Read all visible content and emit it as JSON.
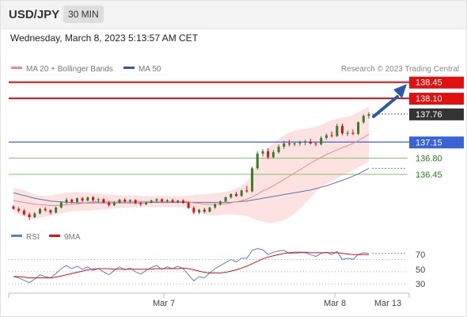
{
  "header": {
    "pair": "USD/JPY",
    "timeframe": "30 MIN"
  },
  "datetime": "Wednesday, March 8, 2023 5:13:57 AM CET",
  "legend": [
    {
      "label": "MA 20 + Bollinger Bands",
      "color": "#f08a8a"
    },
    {
      "label": "MA 50",
      "color": "#3a5a8f"
    }
  ],
  "source": "Research © 2023 Trading Central",
  "colors": {
    "resistance": "#e01010",
    "pivot": "#3a63d6",
    "support": "#7cc36c",
    "bull": "#3c7a2a",
    "bear": "#d51515",
    "ma20": "#f08a8a",
    "ma50": "#5b74b0",
    "band": "#fde2e2",
    "current": "#333333",
    "arrow": "#2c5aa8",
    "rsi": "#5b7ed8",
    "rsi_ma": "#e01010"
  },
  "levels": [
    {
      "value": 138.45,
      "label": "138.45",
      "kind": "resistance",
      "style": "box"
    },
    {
      "value": 138.1,
      "label": "138.10",
      "kind": "resistance",
      "style": "box"
    },
    {
      "value": 137.76,
      "label": "137.76",
      "kind": "current",
      "style": "box"
    },
    {
      "value": 137.15,
      "label": "137.15",
      "kind": "pivot",
      "style": "box"
    },
    {
      "value": 136.8,
      "label": "136.80",
      "kind": "support",
      "style": "text"
    },
    {
      "value": 136.45,
      "label": "136.45",
      "kind": "support",
      "style": "text"
    }
  ],
  "rsi_panel": {
    "legend": [
      {
        "label": "RSI",
        "color": "#5b7ed8"
      },
      {
        "label": "9MA",
        "color": "#e01010"
      }
    ],
    "levels": [
      "70",
      "50",
      "30"
    ]
  },
  "x_axis": {
    "labels": [
      "Mar 7",
      "Mar 8",
      "Mar 13"
    ]
  },
  "chart_data": {
    "type": "candlestick",
    "price_range": [
      135.4,
      138.6
    ],
    "candles_ohlc": [
      [
        135.75,
        135.78,
        135.68,
        135.7
      ],
      [
        135.7,
        135.74,
        135.62,
        135.66
      ],
      [
        135.66,
        135.7,
        135.55,
        135.58
      ],
      [
        135.58,
        135.62,
        135.46,
        135.52
      ],
      [
        135.52,
        135.63,
        135.5,
        135.6
      ],
      [
        135.6,
        135.72,
        135.58,
        135.7
      ],
      [
        135.7,
        135.74,
        135.64,
        135.67
      ],
      [
        135.67,
        135.69,
        135.58,
        135.62
      ],
      [
        135.62,
        135.75,
        135.6,
        135.73
      ],
      [
        135.73,
        135.86,
        135.71,
        135.84
      ],
      [
        135.84,
        135.94,
        135.8,
        135.9
      ],
      [
        135.9,
        135.92,
        135.82,
        135.85
      ],
      [
        135.85,
        135.95,
        135.83,
        135.93
      ],
      [
        135.93,
        135.96,
        135.85,
        135.88
      ],
      [
        135.88,
        135.97,
        135.86,
        135.95
      ],
      [
        135.95,
        135.98,
        135.86,
        135.89
      ],
      [
        135.89,
        135.94,
        135.84,
        135.91
      ],
      [
        135.91,
        135.93,
        135.82,
        135.84
      ],
      [
        135.84,
        135.87,
        135.75,
        135.78
      ],
      [
        135.78,
        135.86,
        135.76,
        135.84
      ],
      [
        135.84,
        135.92,
        135.82,
        135.9
      ],
      [
        135.9,
        135.93,
        135.84,
        135.86
      ],
      [
        135.86,
        135.91,
        135.83,
        135.89
      ],
      [
        135.89,
        135.91,
        135.8,
        135.82
      ],
      [
        135.82,
        135.86,
        135.76,
        135.8
      ],
      [
        135.8,
        135.86,
        135.78,
        135.84
      ],
      [
        135.84,
        135.9,
        135.82,
        135.88
      ],
      [
        135.88,
        135.93,
        135.85,
        135.91
      ],
      [
        135.91,
        135.93,
        135.84,
        135.86
      ],
      [
        135.86,
        135.91,
        135.83,
        135.89
      ],
      [
        135.89,
        135.92,
        135.83,
        135.85
      ],
      [
        135.85,
        135.9,
        135.82,
        135.88
      ],
      [
        135.88,
        135.91,
        135.81,
        135.83
      ],
      [
        135.83,
        135.86,
        135.7,
        135.72
      ],
      [
        135.72,
        135.76,
        135.58,
        135.62
      ],
      [
        135.62,
        135.7,
        135.58,
        135.68
      ],
      [
        135.68,
        135.72,
        135.6,
        135.64
      ],
      [
        135.64,
        135.75,
        135.62,
        135.73
      ],
      [
        135.73,
        135.82,
        135.7,
        135.8
      ],
      [
        135.8,
        135.88,
        135.77,
        135.86
      ],
      [
        135.86,
        135.97,
        135.84,
        135.95
      ],
      [
        135.95,
        136.04,
        135.92,
        136.02
      ],
      [
        136.02,
        136.07,
        135.96,
        135.98
      ],
      [
        135.98,
        136.12,
        135.96,
        136.1
      ],
      [
        136.1,
        136.2,
        136.05,
        136.08
      ],
      [
        136.08,
        136.62,
        136.06,
        136.58
      ],
      [
        136.58,
        136.95,
        136.55,
        136.9
      ],
      [
        136.9,
        137.0,
        136.84,
        136.95
      ],
      [
        136.95,
        137.02,
        136.78,
        136.82
      ],
      [
        136.82,
        136.98,
        136.8,
        136.93
      ],
      [
        136.93,
        137.1,
        136.9,
        137.05
      ],
      [
        137.05,
        137.18,
        137.0,
        137.12
      ],
      [
        137.12,
        137.2,
        137.06,
        137.1
      ],
      [
        137.1,
        137.16,
        137.06,
        137.12
      ],
      [
        137.12,
        137.18,
        137.07,
        137.14
      ],
      [
        137.14,
        137.2,
        137.08,
        137.16
      ],
      [
        137.16,
        137.22,
        137.1,
        137.12
      ],
      [
        137.12,
        137.16,
        137.06,
        137.1
      ],
      [
        137.1,
        137.28,
        137.08,
        137.24
      ],
      [
        137.24,
        137.34,
        137.2,
        137.3
      ],
      [
        137.3,
        137.38,
        137.25,
        137.28
      ],
      [
        137.28,
        137.55,
        137.26,
        137.5
      ],
      [
        137.5,
        137.55,
        137.3,
        137.34
      ],
      [
        137.34,
        137.4,
        137.28,
        137.35
      ],
      [
        137.35,
        137.42,
        137.3,
        137.33
      ],
      [
        137.33,
        137.6,
        137.3,
        137.58
      ],
      [
        137.58,
        137.75,
        137.55,
        137.72
      ],
      [
        137.72,
        137.8,
        137.66,
        137.76
      ]
    ],
    "ma20": [
      135.88,
      135.86,
      135.84,
      135.82,
      135.8,
      135.79,
      135.78,
      135.77,
      135.77,
      135.78,
      135.79,
      135.8,
      135.81,
      135.82,
      135.84,
      135.85,
      135.86,
      135.86,
      135.86,
      135.86,
      135.86,
      135.86,
      135.86,
      135.86,
      135.86,
      135.86,
      135.86,
      135.86,
      135.86,
      135.86,
      135.86,
      135.86,
      135.86,
      135.85,
      135.83,
      135.82,
      135.8,
      135.8,
      135.8,
      135.8,
      135.81,
      135.83,
      135.85,
      135.88,
      135.91,
      135.96,
      136.02,
      136.09,
      136.14,
      136.2,
      136.27,
      136.34,
      136.41,
      136.48,
      136.55,
      136.62,
      136.69,
      136.76,
      136.82,
      136.88,
      136.93,
      136.98,
      137.03,
      137.07,
      137.12,
      137.18,
      137.25,
      137.32
    ],
    "ma50": [
      136.05,
      136.02,
      135.99,
      135.96,
      135.93,
      135.91,
      135.89,
      135.87,
      135.86,
      135.85,
      135.84,
      135.84,
      135.83,
      135.83,
      135.83,
      135.83,
      135.83,
      135.83,
      135.83,
      135.83,
      135.83,
      135.83,
      135.83,
      135.83,
      135.83,
      135.83,
      135.84,
      135.84,
      135.84,
      135.84,
      135.84,
      135.84,
      135.84,
      135.84,
      135.84,
      135.84,
      135.84,
      135.84,
      135.84,
      135.84,
      135.84,
      135.84,
      135.85,
      135.86,
      135.87,
      135.89,
      135.91,
      135.93,
      135.95,
      135.97,
      135.99,
      136.01,
      136.03,
      136.05,
      136.07,
      136.09,
      136.11,
      136.14,
      136.17,
      136.2,
      136.24,
      136.28,
      136.32,
      136.36,
      136.41,
      136.46,
      136.52,
      136.58
    ],
    "bb_upper": [
      136.15,
      136.13,
      136.1,
      136.06,
      136.02,
      135.99,
      135.98,
      135.99,
      136.01,
      136.03,
      136.05,
      136.06,
      136.06,
      136.05,
      136.05,
      136.04,
      136.03,
      136.02,
      136.01,
      136.0,
      136.0,
      135.99,
      135.99,
      135.99,
      135.98,
      135.98,
      135.98,
      135.98,
      135.98,
      135.98,
      135.98,
      135.98,
      135.98,
      135.99,
      136.0,
      136.01,
      136.02,
      136.03,
      136.04,
      136.05,
      136.07,
      136.1,
      136.14,
      136.2,
      136.28,
      136.5,
      136.7,
      136.88,
      137.02,
      137.12,
      137.22,
      137.3,
      137.36,
      137.4,
      137.42,
      137.44,
      137.46,
      137.48,
      137.52,
      137.58,
      137.62,
      137.66,
      137.68,
      137.7,
      137.74,
      137.8,
      137.86,
      137.92
    ],
    "bb_lower": [
      135.62,
      135.58,
      135.54,
      135.5,
      135.48,
      135.5,
      135.53,
      135.55,
      135.57,
      135.6,
      135.63,
      135.65,
      135.66,
      135.66,
      135.66,
      135.67,
      135.68,
      135.69,
      135.7,
      135.71,
      135.72,
      135.73,
      135.73,
      135.73,
      135.74,
      135.74,
      135.74,
      135.74,
      135.74,
      135.74,
      135.74,
      135.74,
      135.74,
      135.72,
      135.68,
      135.63,
      135.58,
      135.56,
      135.56,
      135.57,
      135.58,
      135.58,
      135.57,
      135.56,
      135.55,
      135.5,
      135.45,
      135.42,
      135.4,
      135.4,
      135.42,
      135.46,
      135.52,
      135.6,
      135.7,
      135.82,
      135.94,
      136.06,
      136.16,
      136.24,
      136.3,
      136.36,
      136.42,
      136.48,
      136.54,
      136.6,
      136.66,
      136.72
    ],
    "rsi": [
      42,
      40,
      36,
      32,
      38,
      45,
      42,
      40,
      47,
      55,
      60,
      55,
      59,
      54,
      58,
      52,
      55,
      50,
      45,
      52,
      58,
      53,
      56,
      50,
      46,
      52,
      57,
      60,
      54,
      58,
      55,
      59,
      55,
      45,
      35,
      42,
      40,
      48,
      55,
      60,
      65,
      70,
      66,
      72,
      72,
      85,
      88,
      86,
      78,
      82,
      84,
      85,
      80,
      80,
      81,
      81,
      78,
      75,
      80,
      82,
      78,
      83,
      70,
      72,
      70,
      78,
      81,
      80
    ],
    "rsi_ma": [
      42,
      42,
      41,
      40,
      40,
      40,
      40,
      40,
      41,
      43,
      45,
      47,
      49,
      51,
      53,
      54,
      55,
      55,
      55,
      54,
      54,
      54,
      54,
      54,
      54,
      54,
      54,
      55,
      55,
      55,
      55,
      55,
      56,
      55,
      53,
      51,
      49,
      48,
      48,
      48,
      49,
      51,
      53,
      56,
      59,
      63,
      67,
      71,
      74,
      76,
      78,
      80,
      81,
      82,
      82,
      82,
      81,
      81,
      81,
      81,
      81,
      81,
      80,
      79,
      78,
      78,
      78,
      78
    ],
    "rsi_range": [
      20,
      90
    ]
  }
}
